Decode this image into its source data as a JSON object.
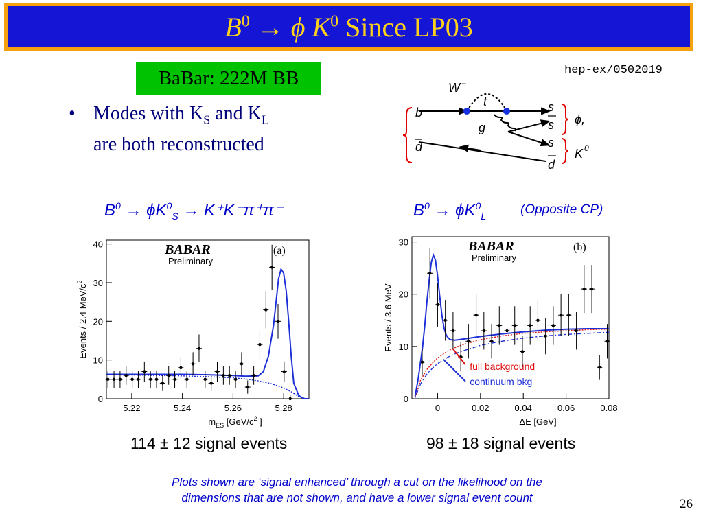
{
  "slide": {
    "title_italic_1": "B",
    "title_sup_1": "0",
    "title_arrow": "→",
    "title_phi": "ϕ",
    "title_italic_2": "K",
    "title_sup_2": "0",
    "title_rest": "Since LP03",
    "babar_box": "BaBar: 222M BB",
    "hep_ref": "hep-ex/0502019",
    "bullet": {
      "symbol": "•",
      "pre": "Modes with K",
      "sub1": "S",
      "mid": " and K",
      "sub2": "L",
      "post": "are both reconstructed"
    },
    "page_number": "26",
    "footnote_line1": "Plots shown are ‘signal enhanced’ through a cut on the likelihood on the",
    "footnote_line2": "dimensions that are not shown, and have a lower signal event count"
  },
  "feynman": {
    "labels": {
      "W": "W",
      "W_sup": "−",
      "t": "t",
      "b": "b",
      "d": "d",
      "g": "g",
      "s1": "s",
      "s2": "s",
      "s3": "s",
      "d2": "d",
      "phi": "ϕ,",
      "K": "K",
      "K_sup": "0"
    },
    "colors": {
      "vertex": "#1530e0",
      "lines": "#000000"
    }
  },
  "left_plot_header": {
    "B": "B",
    "B_sup": "0",
    "arrow1": "→",
    "phiK": "ϕK",
    "phiK_sup": "0",
    "phiK_sub": "S",
    "arrow2": "→",
    "rest": "K⁺K⁻π⁺π⁻"
  },
  "right_plot_header": {
    "B": "B",
    "B_sup": "0",
    "arrow1": "→",
    "phiK": "ϕK",
    "phiK_sup": "0",
    "phiK_sub": "L"
  },
  "opposite_cp": "(Opposite CP)",
  "counts": {
    "left": "114 ± 12 signal events",
    "right": "98 ± 18 signal events"
  },
  "chart_data": [
    {
      "type": "scatter",
      "panel": "(a)",
      "logo": "BABAR",
      "logo_sub": "Preliminary",
      "xlabel": "m",
      "xlabel_sub": "ES",
      "xlabel_unit": " [GeV/c",
      "xlabel_unit_sup": "2",
      "xlabel_unit_end": " ]",
      "ylabel": "Events / 2.4 MeV/c",
      "ylabel_sup": "2",
      "xlim": [
        5.21,
        5.29
      ],
      "ylim": [
        0,
        41
      ],
      "xticks": [
        5.22,
        5.24,
        5.26,
        5.28
      ],
      "xtick_labels": [
        "5.22",
        "5.24",
        "5.26",
        "5.28"
      ],
      "yticks": [
        0,
        10,
        20,
        30,
        40
      ],
      "ytick_labels": [
        "0",
        "10",
        "20",
        "30",
        "40"
      ],
      "points": {
        "x": [
          5.2106,
          5.213,
          5.2154,
          5.2178,
          5.2202,
          5.2226,
          5.225,
          5.2274,
          5.2298,
          5.2322,
          5.2346,
          5.237,
          5.2394,
          5.2418,
          5.2442,
          5.2466,
          5.249,
          5.2514,
          5.2538,
          5.2562,
          5.2586,
          5.261,
          5.2634,
          5.2658,
          5.2682,
          5.2706,
          5.273,
          5.2754,
          5.2778,
          5.2802,
          5.2826
        ],
        "y": [
          5,
          5,
          5,
          6,
          5,
          5,
          7,
          5,
          5,
          4,
          6,
          5,
          8,
          5,
          9,
          13,
          5,
          4,
          7,
          6,
          6,
          5,
          9,
          3,
          6,
          14,
          23,
          34,
          20,
          7,
          0
        ],
        "err": [
          2.2,
          2.2,
          2.2,
          2.4,
          2.2,
          2.2,
          2.6,
          2.2,
          2.2,
          2,
          2.4,
          2.2,
          2.8,
          2.2,
          3,
          3.6,
          2.2,
          2,
          2.6,
          2.4,
          2.4,
          2.2,
          3,
          1.7,
          2.4,
          3.7,
          4.8,
          5.8,
          4.5,
          2.6,
          1
        ]
      },
      "fit_total": {
        "x": [
          5.21,
          5.22,
          5.23,
          5.24,
          5.25,
          5.26,
          5.265,
          5.27,
          5.272,
          5.274,
          5.276,
          5.277,
          5.278,
          5.279,
          5.28,
          5.281,
          5.282,
          5.283,
          5.284,
          5.286,
          5.288,
          5.29
        ],
        "y": [
          6.3,
          6.3,
          6.3,
          6.3,
          6.2,
          6,
          5.8,
          5.9,
          7,
          11,
          19,
          25,
          31,
          33.5,
          32.5,
          28,
          20,
          11,
          4,
          0.8,
          0,
          0
        ]
      },
      "fit_background": {
        "x": [
          5.21,
          5.22,
          5.23,
          5.24,
          5.25,
          5.26,
          5.265,
          5.27,
          5.275,
          5.28,
          5.283,
          5.286,
          5.289
        ],
        "y": [
          6.2,
          6.1,
          6.0,
          5.9,
          5.7,
          5.4,
          5.1,
          4.6,
          3.9,
          2.8,
          1.8,
          0.5,
          0
        ]
      },
      "colors": {
        "fit": "#1d2fd6",
        "points": "#000000"
      }
    },
    {
      "type": "scatter",
      "panel": "(b)",
      "logo": "BABAR",
      "logo_sub": "Preliminary",
      "xlabel": "ΔE [GeV]",
      "ylabel": "Events / 3.6 MeV",
      "xlim": [
        -0.012,
        0.08
      ],
      "ylim": [
        0,
        31
      ],
      "xticks": [
        0,
        0.02,
        0.04,
        0.06,
        0.08
      ],
      "xtick_labels": [
        "0",
        "0.02",
        "0.04",
        "0.06",
        "0.08"
      ],
      "yticks": [
        0,
        10,
        20,
        30
      ],
      "ytick_labels": [
        "0",
        "10",
        "20",
        "30"
      ],
      "points": {
        "x": [
          -0.0072,
          -0.0036,
          0.0,
          0.0036,
          0.0072,
          0.0108,
          0.0144,
          0.018,
          0.0216,
          0.0252,
          0.0288,
          0.0324,
          0.036,
          0.0396,
          0.0432,
          0.0468,
          0.0504,
          0.054,
          0.0576,
          0.0612,
          0.0648,
          0.0684,
          0.072,
          0.0756,
          0.0792
        ],
        "y": [
          7,
          24,
          18,
          15,
          13,
          8,
          11,
          16,
          13,
          11,
          14,
          13,
          14,
          9,
          14,
          15,
          12,
          14,
          16,
          16,
          13,
          21,
          21,
          6,
          11
        ],
        "err": [
          2.6,
          4.9,
          4.2,
          3.9,
          3.6,
          2.8,
          3.3,
          4,
          3.6,
          3.3,
          3.7,
          3.6,
          3.7,
          3,
          3.7,
          3.9,
          3.5,
          3.7,
          4,
          4,
          3.6,
          4.6,
          4.6,
          2.4,
          3.3
        ]
      },
      "fit_total": {
        "x": [
          -0.0105,
          -0.009,
          -0.008,
          -0.007,
          -0.006,
          -0.005,
          -0.004,
          -0.003,
          -0.002,
          -0.001,
          0.0,
          0.001,
          0.002,
          0.003,
          0.004,
          0.005,
          0.006,
          0.008,
          0.01,
          0.015,
          0.02,
          0.03,
          0.04,
          0.05,
          0.06,
          0.07,
          0.08
        ],
        "y": [
          0.5,
          4,
          7,
          10,
          14,
          18.5,
          22.5,
          26,
          27.5,
          26.5,
          23.5,
          19.5,
          16,
          13.5,
          12.2,
          11.6,
          11.3,
          11.2,
          11.3,
          11.6,
          11.9,
          12.4,
          12.8,
          13.1,
          13.3,
          13.4,
          13.4
        ]
      },
      "fit_background": {
        "x": [
          -0.0105,
          -0.008,
          -0.005,
          -0.002,
          0.0,
          0.005,
          0.01,
          0.02,
          0.03,
          0.04,
          0.05,
          0.06,
          0.07,
          0.08
        ],
        "y": [
          0.3,
          3.5,
          5.6,
          7,
          7.8,
          9.2,
          10.1,
          11.3,
          12,
          12.5,
          12.8,
          13,
          13.2,
          13.3
        ]
      },
      "fit_continuum": {
        "x": [
          -0.0105,
          -0.008,
          -0.005,
          -0.002,
          0.0,
          0.005,
          0.01,
          0.02,
          0.03,
          0.04,
          0.05,
          0.06,
          0.07,
          0.08
        ],
        "y": [
          0.2,
          2.8,
          4.7,
          6,
          6.7,
          8,
          8.9,
          10.2,
          11,
          11.6,
          12,
          12.3,
          12.5,
          12.7
        ]
      },
      "annotations": {
        "full_background": "full background",
        "continuum": "continuum bkg"
      },
      "colors": {
        "fit": "#1d2fd6",
        "full_background": "#e01010",
        "continuum": "#1d2fd6",
        "points": "#000000"
      }
    }
  ]
}
